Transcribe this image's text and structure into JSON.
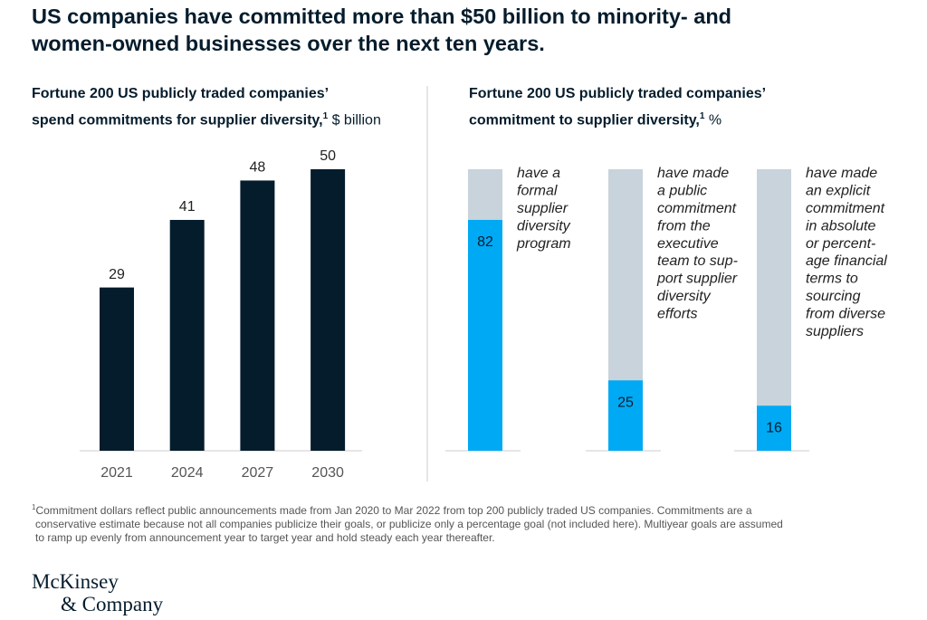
{
  "title": [
    "US companies have committed more than $50 billion to minority- and",
    "women-owned businesses over the next ten years."
  ],
  "chart_data": [
    {
      "type": "bar",
      "title": [
        "Fortune 200 US publicly traded companies’",
        "spend commitments for supplier diversity,"
      ],
      "title_note": "1",
      "unit": "$ billion",
      "categories": [
        "2021",
        "2024",
        "2027",
        "2030"
      ],
      "values": [
        29,
        41,
        48,
        50
      ],
      "color": "#051c2c"
    },
    {
      "type": "percent_bar",
      "title": [
        "Fortune 200 US publicly traded companies’",
        "commitment to supplier diversity,"
      ],
      "title_note": "1",
      "unit": "%",
      "labels": [
        [
          "have a",
          "formal",
          "supplier",
          "diversity",
          "program"
        ],
        [
          "have made",
          "a public",
          "commitment",
          "from the",
          "executive",
          "team to sup-",
          "port supplier",
          "diversity",
          "efforts"
        ],
        [
          "have made",
          "an explicit",
          "commitment",
          "in absolute",
          "or percent-",
          "age financial",
          "terms to",
          "sourcing",
          "from diverse",
          "suppliers"
        ]
      ],
      "values": [
        82,
        25,
        16
      ],
      "color": "#00a9f4",
      "track_color": "#c8d3db"
    }
  ],
  "footnote": {
    "marker": "1",
    "lines": [
      "Commitment dollars reflect public announcements made from Jan 2020 to Mar 2022 from top 200 publicly traded US companies. Commitments are a",
      "conservative estimate because not all companies publicize their goals, or publicize only a percentage goal (not included here). Multiyear goals are assumed",
      "to ramp up evenly from announcement year to target year and hold steady each year thereafter."
    ]
  },
  "brand": [
    "McKinsey",
    "& Company"
  ]
}
